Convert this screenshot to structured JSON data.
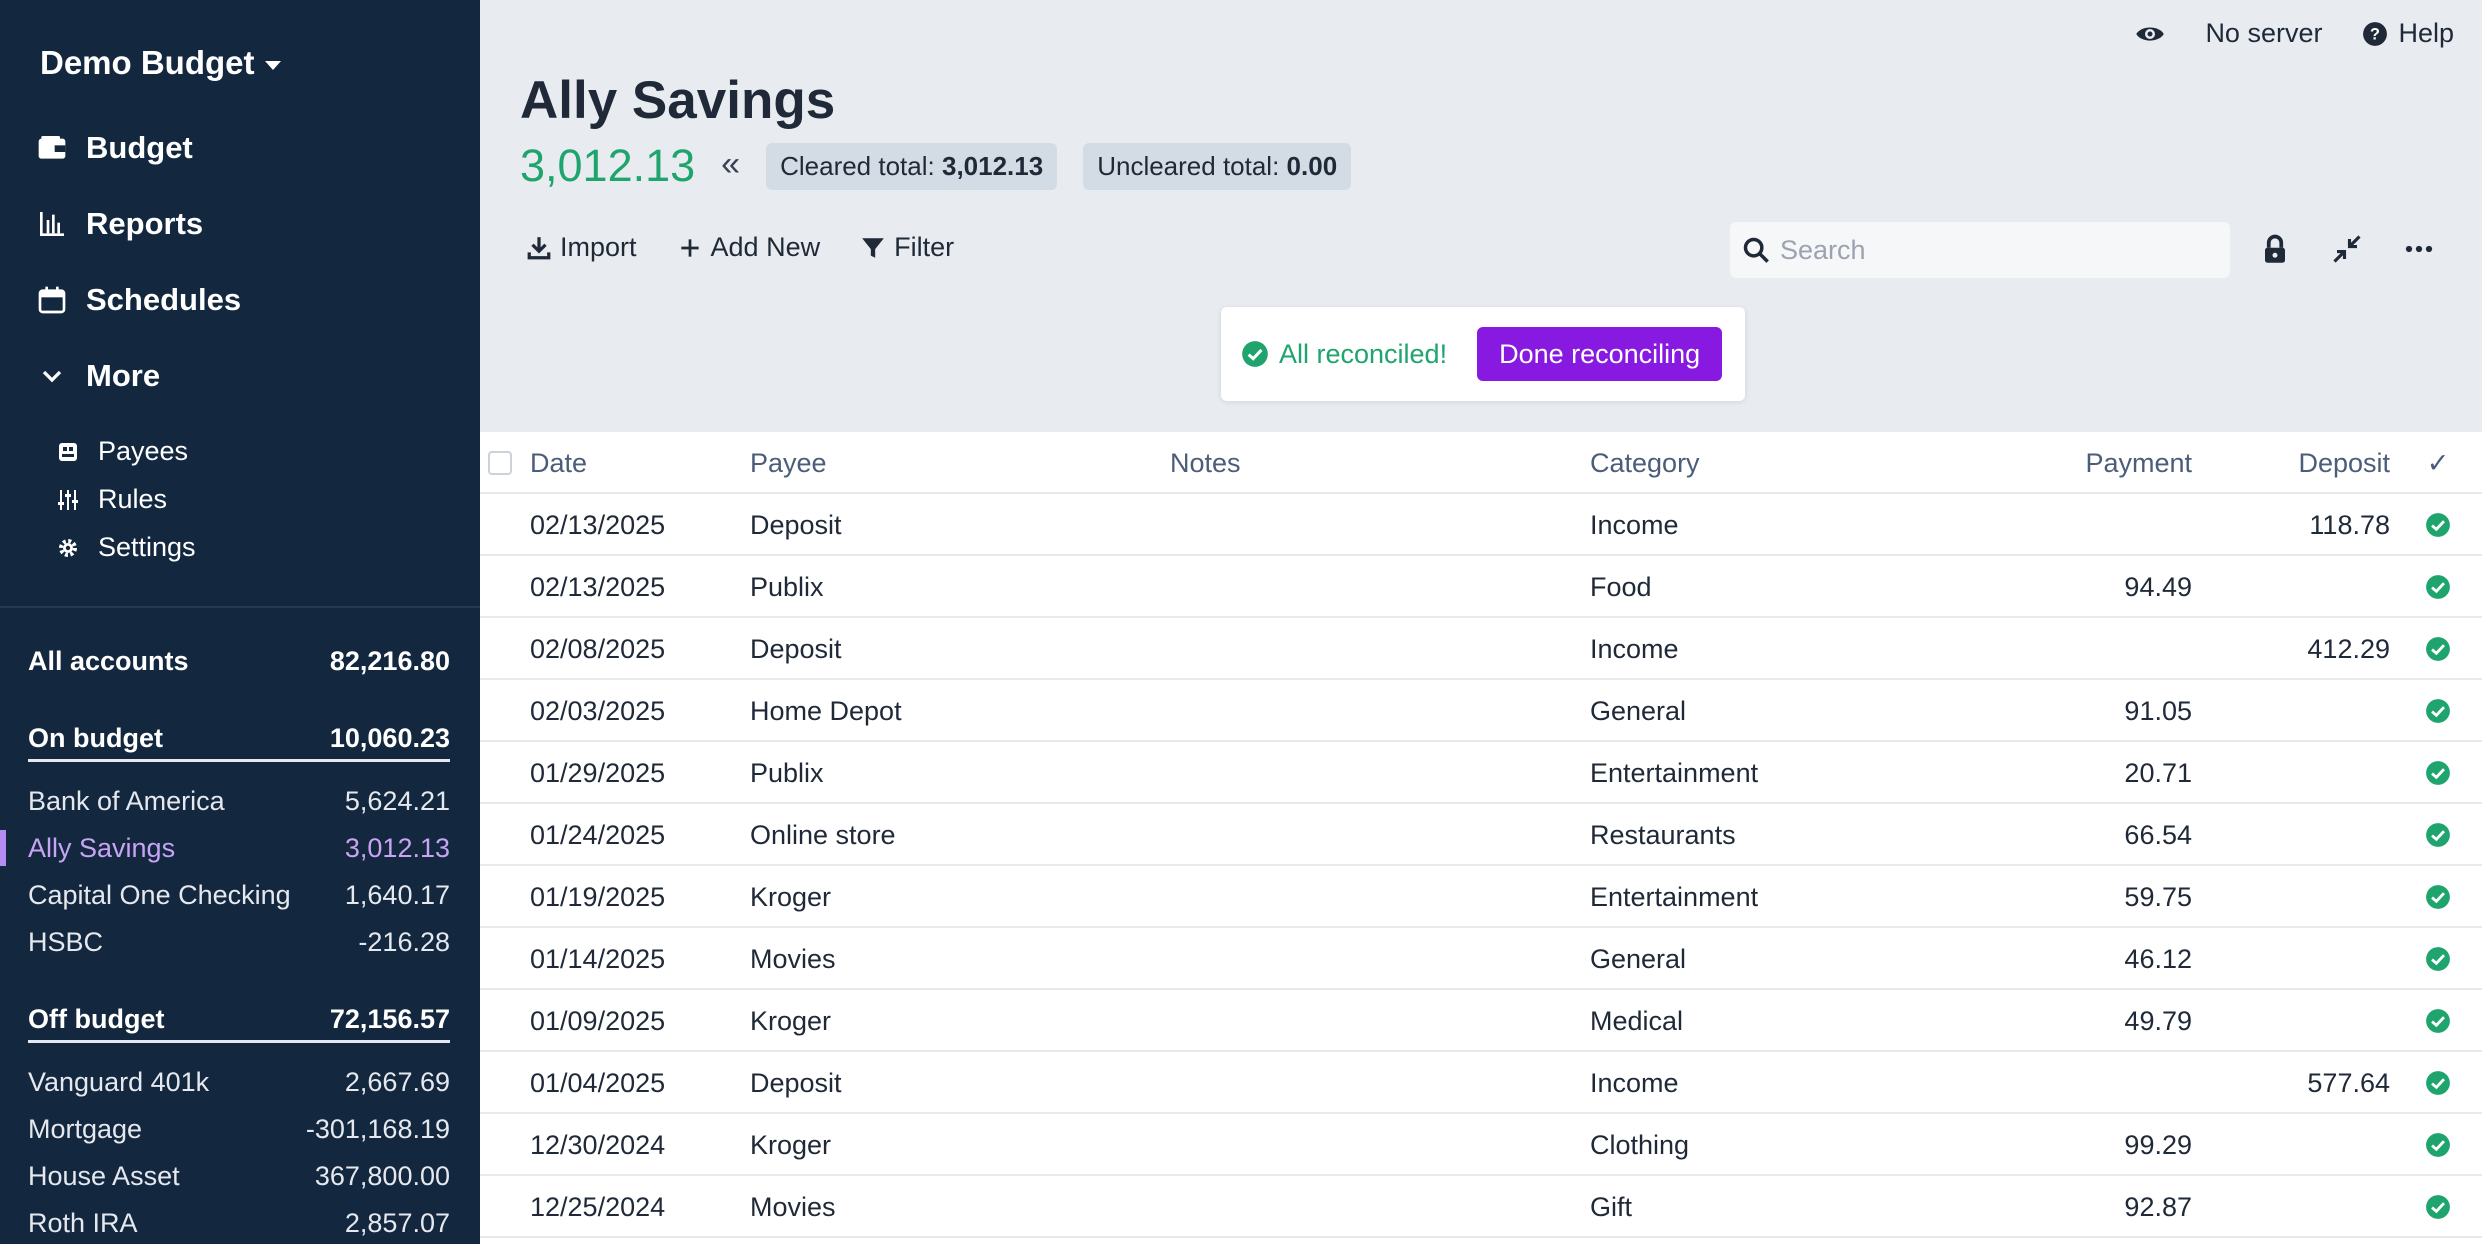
{
  "sidebar": {
    "budget_name": "Demo Budget",
    "nav": [
      {
        "label": "Budget",
        "icon": "wallet-icon"
      },
      {
        "label": "Reports",
        "icon": "bar-chart-icon"
      },
      {
        "label": "Schedules",
        "icon": "calendar-icon"
      },
      {
        "label": "More",
        "icon": "chevron-down-icon"
      }
    ],
    "sub_nav": [
      {
        "label": "Payees",
        "icon": "payees-icon"
      },
      {
        "label": "Rules",
        "icon": "rules-icon"
      },
      {
        "label": "Settings",
        "icon": "gear-icon"
      }
    ],
    "all_accounts": {
      "label": "All accounts",
      "value": "82,216.80"
    },
    "on_budget": {
      "label": "On budget",
      "value": "10,060.23"
    },
    "on_budget_accounts": [
      {
        "name": "Bank of America",
        "value": "5,624.21"
      },
      {
        "name": "Ally Savings",
        "value": "3,012.13"
      },
      {
        "name": "Capital One Checking",
        "value": "1,640.17"
      },
      {
        "name": "HSBC",
        "value": "-216.28"
      }
    ],
    "off_budget": {
      "label": "Off budget",
      "value": "72,156.57"
    },
    "off_budget_accounts": [
      {
        "name": "Vanguard 401k",
        "value": "2,667.69"
      },
      {
        "name": "Mortgage",
        "value": "-301,168.19"
      },
      {
        "name": "House Asset",
        "value": "367,800.00"
      },
      {
        "name": "Roth IRA",
        "value": "2,857.07"
      }
    ]
  },
  "topbar": {
    "server_label": "No server",
    "help_label": "Help"
  },
  "account": {
    "title": "Ally Savings",
    "balance": "3,012.13",
    "cleared_label": "Cleared total:",
    "cleared_value": "3,012.13",
    "uncleared_label": "Uncleared total:",
    "uncleared_value": "0.00"
  },
  "toolbar": {
    "import_label": "Import",
    "add_new_label": "Add New",
    "filter_label": "Filter",
    "search_placeholder": "Search"
  },
  "reconcile": {
    "message": "All reconciled!",
    "button_label": "Done reconciling"
  },
  "table": {
    "headers": {
      "date": "Date",
      "payee": "Payee",
      "notes": "Notes",
      "category": "Category",
      "payment": "Payment",
      "deposit": "Deposit",
      "cleared": "✓"
    },
    "rows": [
      {
        "date": "02/13/2025",
        "payee": "Deposit",
        "notes": "",
        "category": "Income",
        "payment": "",
        "deposit": "118.78"
      },
      {
        "date": "02/13/2025",
        "payee": "Publix",
        "notes": "",
        "category": "Food",
        "payment": "94.49",
        "deposit": ""
      },
      {
        "date": "02/08/2025",
        "payee": "Deposit",
        "notes": "",
        "category": "Income",
        "payment": "",
        "deposit": "412.29"
      },
      {
        "date": "02/03/2025",
        "payee": "Home Depot",
        "notes": "",
        "category": "General",
        "payment": "91.05",
        "deposit": ""
      },
      {
        "date": "01/29/2025",
        "payee": "Publix",
        "notes": "",
        "category": "Entertainment",
        "payment": "20.71",
        "deposit": ""
      },
      {
        "date": "01/24/2025",
        "payee": "Online store",
        "notes": "",
        "category": "Restaurants",
        "payment": "66.54",
        "deposit": ""
      },
      {
        "date": "01/19/2025",
        "payee": "Kroger",
        "notes": "",
        "category": "Entertainment",
        "payment": "59.75",
        "deposit": ""
      },
      {
        "date": "01/14/2025",
        "payee": "Movies",
        "notes": "",
        "category": "General",
        "payment": "46.12",
        "deposit": ""
      },
      {
        "date": "01/09/2025",
        "payee": "Kroger",
        "notes": "",
        "category": "Medical",
        "payment": "49.79",
        "deposit": ""
      },
      {
        "date": "01/04/2025",
        "payee": "Deposit",
        "notes": "",
        "category": "Income",
        "payment": "",
        "deposit": "577.64"
      },
      {
        "date": "12/30/2024",
        "payee": "Kroger",
        "notes": "",
        "category": "Clothing",
        "payment": "99.29",
        "deposit": ""
      },
      {
        "date": "12/25/2024",
        "payee": "Movies",
        "notes": "",
        "category": "Gift",
        "payment": "92.87",
        "deposit": ""
      }
    ]
  },
  "colors": {
    "sidebar_bg": "#13273e",
    "balance_green": "#1fa46d",
    "selected_account": "#c8a4f5",
    "primary_button": "#8719e0"
  }
}
